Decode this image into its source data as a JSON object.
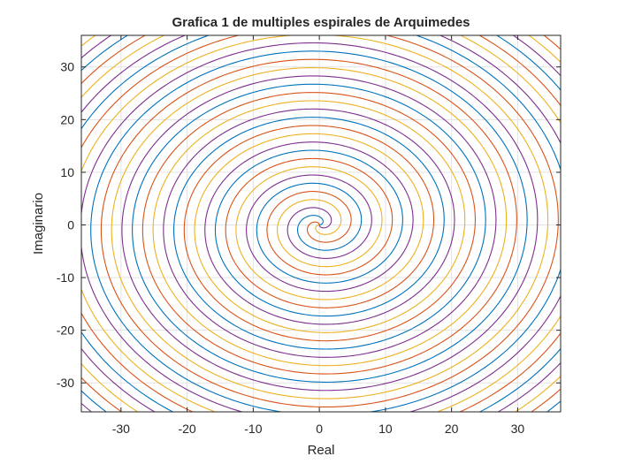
{
  "chart_data": {
    "type": "line",
    "title": "Grafica 1 de multiples espirales de Arquimedes",
    "xlabel": "Real",
    "ylabel": "Imaginario",
    "xlim": [
      -36,
      36.5
    ],
    "ylim": [
      -35.5,
      36
    ],
    "xticks": [
      -30,
      -20,
      -10,
      0,
      10,
      20,
      30
    ],
    "yticks": [
      -30,
      -20,
      -10,
      0,
      10,
      20,
      30
    ],
    "xticklabels": [
      "-30",
      "-20",
      "-10",
      "0",
      "10",
      "20",
      "30"
    ],
    "yticklabels": [
      "-30",
      "-20",
      "-10",
      "0",
      "10",
      "20",
      "30"
    ],
    "grid": true,
    "legend": "none",
    "series": [
      {
        "color": "#0072BD",
        "a": 1,
        "center": [
          0,
          0
        ],
        "theta_range": [
          0,
          50
        ]
      },
      {
        "color": "#D95319",
        "a": 1,
        "center": [
          0,
          0
        ],
        "theta_range": [
          0,
          50
        ]
      },
      {
        "color": "#EDB120",
        "a": 1,
        "center": [
          0,
          0
        ],
        "theta_range": [
          0,
          50
        ]
      },
      {
        "color": "#7E2F8E",
        "a": 1,
        "center": [
          0,
          0
        ],
        "theta_range": [
          0,
          50
        ]
      }
    ]
  }
}
